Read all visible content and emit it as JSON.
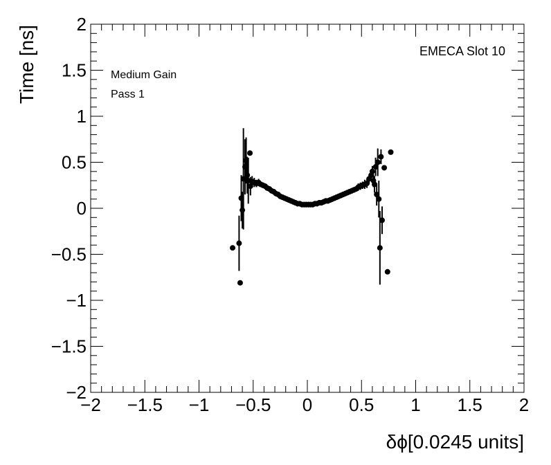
{
  "chart_data": {
    "type": "scatter",
    "xlabel": "δϕ[0.0245 units]",
    "ylabel": "Time [ns]",
    "xlim": [
      -2,
      2
    ],
    "ylim": [
      -2,
      2
    ],
    "xticks": [
      "−2",
      "−1.5",
      "−1",
      "−0.5",
      "0",
      "0.5",
      "1",
      "1.5",
      "2"
    ],
    "yticks": [
      "−2",
      "−1.5",
      "−1",
      "−0.5",
      "0",
      "0.5",
      "1",
      "1.5",
      "2"
    ],
    "grid": false,
    "annotations": {
      "top_right": "EMECA Slot 10",
      "top_left_line1": "Medium Gain",
      "top_left_line2": "Pass 1"
    },
    "series": [
      {
        "marker": "circle",
        "color": "#000000",
        "points": [
          {
            "x": -0.69,
            "y": -0.43,
            "err": 0.0
          },
          {
            "x": -0.63,
            "y": -0.38,
            "err": 0.3
          },
          {
            "x": -0.62,
            "y": -0.81,
            "err": 0.0
          },
          {
            "x": -0.61,
            "y": 0.11,
            "err": 0.25
          },
          {
            "x": -0.6,
            "y": -0.02,
            "err": 0.2
          },
          {
            "x": -0.59,
            "y": 0.32,
            "err": 0.55
          },
          {
            "x": -0.575,
            "y": 0.45,
            "err": 0.3
          },
          {
            "x": -0.565,
            "y": 0.52,
            "err": 0.25
          },
          {
            "x": -0.555,
            "y": 0.36,
            "err": 0.2
          },
          {
            "x": -0.545,
            "y": 0.3,
            "err": 0.25
          },
          {
            "x": -0.53,
            "y": 0.6,
            "err": 0.0
          },
          {
            "x": -0.525,
            "y": 0.24,
            "err": 0.1
          },
          {
            "x": -0.51,
            "y": 0.29,
            "err": 0.06
          },
          {
            "x": -0.49,
            "y": 0.28,
            "err": 0.05
          },
          {
            "x": -0.47,
            "y": 0.27,
            "err": 0.04
          },
          {
            "x": -0.45,
            "y": 0.28,
            "err": 0.04
          },
          {
            "x": -0.43,
            "y": 0.26,
            "err": 0.03
          },
          {
            "x": -0.41,
            "y": 0.25,
            "err": 0.03
          },
          {
            "x": -0.39,
            "y": 0.24,
            "err": 0.03
          },
          {
            "x": -0.37,
            "y": 0.22,
            "err": 0.03
          },
          {
            "x": -0.35,
            "y": 0.21,
            "err": 0.03
          },
          {
            "x": -0.33,
            "y": 0.19,
            "err": 0.03
          },
          {
            "x": -0.31,
            "y": 0.18,
            "err": 0.03
          },
          {
            "x": -0.29,
            "y": 0.16,
            "err": 0.03
          },
          {
            "x": -0.27,
            "y": 0.15,
            "err": 0.03
          },
          {
            "x": -0.25,
            "y": 0.13,
            "err": 0.03
          },
          {
            "x": -0.23,
            "y": 0.12,
            "err": 0.03
          },
          {
            "x": -0.21,
            "y": 0.11,
            "err": 0.03
          },
          {
            "x": -0.19,
            "y": 0.1,
            "err": 0.03
          },
          {
            "x": -0.17,
            "y": 0.09,
            "err": 0.03
          },
          {
            "x": -0.15,
            "y": 0.08,
            "err": 0.03
          },
          {
            "x": -0.13,
            "y": 0.07,
            "err": 0.03
          },
          {
            "x": -0.11,
            "y": 0.06,
            "err": 0.03
          },
          {
            "x": -0.09,
            "y": 0.05,
            "err": 0.03
          },
          {
            "x": -0.07,
            "y": 0.05,
            "err": 0.03
          },
          {
            "x": -0.05,
            "y": 0.04,
            "err": 0.03
          },
          {
            "x": -0.03,
            "y": 0.04,
            "err": 0.03
          },
          {
            "x": -0.01,
            "y": 0.04,
            "err": 0.03
          },
          {
            "x": 0.01,
            "y": 0.04,
            "err": 0.03
          },
          {
            "x": 0.03,
            "y": 0.04,
            "err": 0.03
          },
          {
            "x": 0.05,
            "y": 0.04,
            "err": 0.03
          },
          {
            "x": 0.07,
            "y": 0.05,
            "err": 0.03
          },
          {
            "x": 0.09,
            "y": 0.05,
            "err": 0.03
          },
          {
            "x": 0.11,
            "y": 0.06,
            "err": 0.03
          },
          {
            "x": 0.13,
            "y": 0.06,
            "err": 0.03
          },
          {
            "x": 0.15,
            "y": 0.07,
            "err": 0.03
          },
          {
            "x": 0.17,
            "y": 0.08,
            "err": 0.03
          },
          {
            "x": 0.19,
            "y": 0.08,
            "err": 0.03
          },
          {
            "x": 0.21,
            "y": 0.09,
            "err": 0.03
          },
          {
            "x": 0.23,
            "y": 0.1,
            "err": 0.03
          },
          {
            "x": 0.25,
            "y": 0.11,
            "err": 0.03
          },
          {
            "x": 0.27,
            "y": 0.12,
            "err": 0.03
          },
          {
            "x": 0.29,
            "y": 0.13,
            "err": 0.03
          },
          {
            "x": 0.31,
            "y": 0.14,
            "err": 0.03
          },
          {
            "x": 0.33,
            "y": 0.15,
            "err": 0.03
          },
          {
            "x": 0.35,
            "y": 0.16,
            "err": 0.03
          },
          {
            "x": 0.37,
            "y": 0.17,
            "err": 0.03
          },
          {
            "x": 0.39,
            "y": 0.18,
            "err": 0.03
          },
          {
            "x": 0.41,
            "y": 0.19,
            "err": 0.03
          },
          {
            "x": 0.43,
            "y": 0.2,
            "err": 0.03
          },
          {
            "x": 0.45,
            "y": 0.21,
            "err": 0.03
          },
          {
            "x": 0.47,
            "y": 0.23,
            "err": 0.04
          },
          {
            "x": 0.49,
            "y": 0.24,
            "err": 0.04
          },
          {
            "x": 0.51,
            "y": 0.25,
            "err": 0.04
          },
          {
            "x": 0.53,
            "y": 0.26,
            "err": 0.05
          },
          {
            "x": 0.55,
            "y": 0.27,
            "err": 0.05
          },
          {
            "x": 0.57,
            "y": 0.32,
            "err": 0.05
          },
          {
            "x": 0.59,
            "y": 0.36,
            "err": 0.05
          },
          {
            "x": 0.6,
            "y": 0.4,
            "err": 0.06
          },
          {
            "x": 0.61,
            "y": 0.3,
            "err": 0.07
          },
          {
            "x": 0.62,
            "y": 0.26,
            "err": 0.09
          },
          {
            "x": 0.63,
            "y": 0.45,
            "err": 0.1
          },
          {
            "x": 0.64,
            "y": 0.15,
            "err": 0.12
          },
          {
            "x": 0.65,
            "y": 0.5,
            "err": 0.15
          },
          {
            "x": 0.66,
            "y": 0.1,
            "err": 0.2
          },
          {
            "x": 0.67,
            "y": -0.43,
            "err": 0.4
          },
          {
            "x": 0.68,
            "y": 0.56,
            "err": 0.08
          },
          {
            "x": 0.69,
            "y": -0.13,
            "err": 0.15
          },
          {
            "x": 0.71,
            "y": 0.44,
            "err": 0.0
          },
          {
            "x": 0.74,
            "y": -0.69,
            "err": 0.0
          },
          {
            "x": 0.77,
            "y": 0.61,
            "err": 0.0
          }
        ]
      }
    ]
  }
}
